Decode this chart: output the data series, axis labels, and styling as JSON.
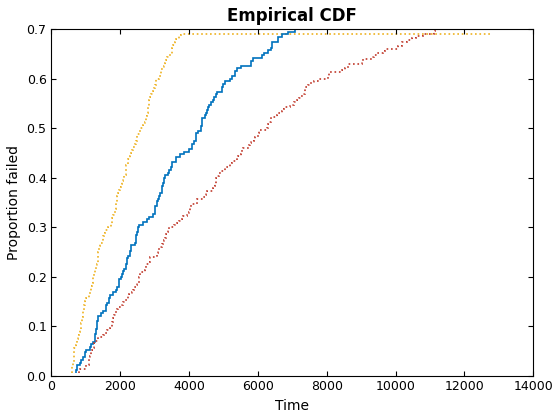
{
  "title": "Empirical CDF",
  "xlabel": "Time",
  "ylabel": "Proportion failed",
  "xlim": [
    0,
    14000
  ],
  "ylim": [
    0,
    0.7
  ],
  "xticks": [
    0,
    2000,
    4000,
    6000,
    8000,
    10000,
    12000,
    14000
  ],
  "yticks": [
    0,
    0.1,
    0.2,
    0.3,
    0.4,
    0.5,
    0.6,
    0.7
  ],
  "line_main_color": "#0072BD",
  "line_upper_color": "#EDB120",
  "line_lower_color": "#C0392B",
  "line_main_style": "solid",
  "line_upper_style": "dotted",
  "line_lower_style": "dotted",
  "line_width": 1.2,
  "background_color": "#ffffff",
  "title_fontsize": 12,
  "label_fontsize": 10,
  "seed": 7
}
